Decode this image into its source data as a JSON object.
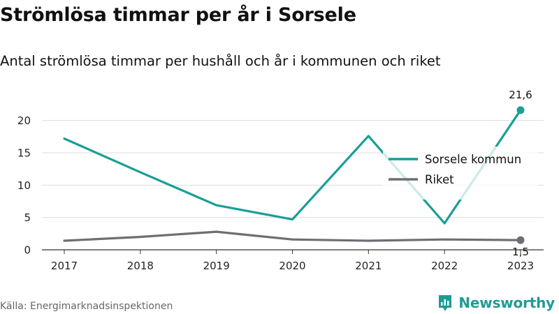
{
  "title": "Strömlösa timmar per år i Sorsele",
  "subtitle": "Antal strömlösa timmar per hushåll och år i kommunen och riket",
  "source": "Källa: Energimarknadsinspektionen",
  "brand": "Newsworthy",
  "colors": {
    "sorsele": "#1a9e96",
    "riket": "#6e6e73",
    "grid": "#dcdcdc"
  },
  "chart_data": {
    "type": "line",
    "x": [
      "2017",
      "2018",
      "2019",
      "2020",
      "2021",
      "2022",
      "2023"
    ],
    "y_ticks": [
      0,
      5,
      10,
      15,
      20
    ],
    "ylim": [
      0,
      23.2
    ],
    "grid": true,
    "legend_position": "right",
    "series": [
      {
        "name": "Sorsele kommun",
        "values": [
          17.2,
          12.0,
          6.9,
          4.7,
          17.6,
          4.1,
          21.6
        ]
      },
      {
        "name": "Riket",
        "values": [
          1.4,
          2.0,
          2.8,
          1.6,
          1.4,
          1.6,
          1.5
        ]
      }
    ],
    "end_labels": [
      "21,6",
      "1,5"
    ]
  }
}
